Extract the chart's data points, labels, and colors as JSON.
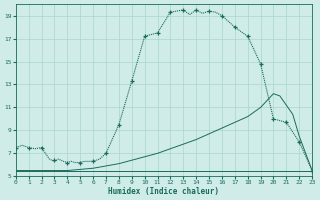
{
  "xlabel": "Humidex (Indice chaleur)",
  "xlim": [
    0,
    23
  ],
  "ylim": [
    5,
    20
  ],
  "yticks": [
    5,
    7,
    9,
    11,
    13,
    15,
    17,
    19
  ],
  "xticks": [
    0,
    1,
    2,
    3,
    4,
    5,
    6,
    7,
    8,
    9,
    10,
    11,
    12,
    13,
    14,
    15,
    16,
    17,
    18,
    19,
    20,
    21,
    22,
    23
  ],
  "bg_color": "#d0ece8",
  "line_color": "#1a6b5a",
  "grid_color": "#a8d4cc",
  "main_x": [
    0,
    0.5,
    1,
    1.5,
    2,
    2.3,
    2.6,
    3.0,
    3.3,
    3.7,
    4.0,
    4.3,
    4.6,
    5.0,
    5.3,
    5.6,
    6.0,
    6.5,
    7.0,
    8.0,
    9.0,
    10.0,
    11.0,
    12.0,
    13.0,
    13.5,
    14.0,
    14.5,
    15.0,
    15.5,
    16.0,
    17.0,
    18.0,
    19.0,
    20.0,
    21.0,
    22.0,
    23.0
  ],
  "main_y": [
    7.5,
    7.7,
    7.5,
    7.4,
    7.5,
    7.0,
    6.5,
    6.3,
    6.5,
    6.3,
    6.2,
    6.3,
    6.2,
    6.2,
    6.3,
    6.3,
    6.3,
    6.5,
    7.0,
    9.5,
    13.3,
    17.2,
    17.5,
    19.3,
    19.5,
    19.1,
    19.5,
    19.2,
    19.4,
    19.3,
    19.0,
    18.0,
    17.2,
    14.8,
    10.0,
    9.7,
    8.0,
    5.5
  ],
  "marker_x": [
    0,
    1,
    2,
    3,
    4,
    5,
    6,
    7,
    8,
    9,
    10,
    11,
    12,
    13,
    14,
    15,
    16,
    17,
    18,
    19,
    20,
    21,
    22,
    23
  ],
  "marker_y": [
    7.5,
    7.5,
    7.5,
    6.4,
    6.2,
    6.2,
    6.3,
    7.0,
    9.5,
    13.3,
    17.2,
    17.5,
    19.3,
    19.5,
    19.5,
    19.4,
    19.0,
    18.0,
    17.2,
    14.8,
    10.0,
    9.7,
    8.0,
    5.5
  ],
  "diag_upper_x": [
    0,
    1,
    2,
    3,
    4,
    5,
    6,
    7,
    8,
    9,
    10,
    11,
    12,
    13,
    14,
    15,
    16,
    17,
    18,
    19,
    20,
    20.5,
    21,
    21.5,
    22,
    23
  ],
  "diag_upper_y": [
    5.5,
    5.5,
    5.5,
    5.5,
    5.5,
    5.6,
    5.7,
    5.9,
    6.1,
    6.4,
    6.7,
    7.0,
    7.4,
    7.8,
    8.2,
    8.7,
    9.2,
    9.7,
    10.2,
    11.0,
    12.2,
    12.0,
    11.2,
    10.4,
    8.5,
    5.5
  ],
  "diag_lower_x": [
    0,
    1,
    2,
    3,
    4,
    5,
    6,
    7,
    8,
    9,
    10,
    11,
    12,
    13,
    14,
    15,
    16,
    17,
    18,
    19,
    20,
    20.5,
    21,
    21.5,
    22,
    23
  ],
  "diag_lower_y": [
    5.5,
    5.5,
    5.5,
    5.5,
    5.5,
    5.5,
    5.5,
    5.5,
    5.5,
    5.5,
    5.5,
    5.5,
    5.5,
    5.5,
    5.5,
    5.5,
    5.5,
    5.5,
    5.5,
    5.5,
    5.5,
    5.5,
    5.5,
    5.5,
    5.5,
    5.5
  ],
  "lw_main": 0.8,
  "lw_diag": 0.7,
  "marker_size": 3.0
}
